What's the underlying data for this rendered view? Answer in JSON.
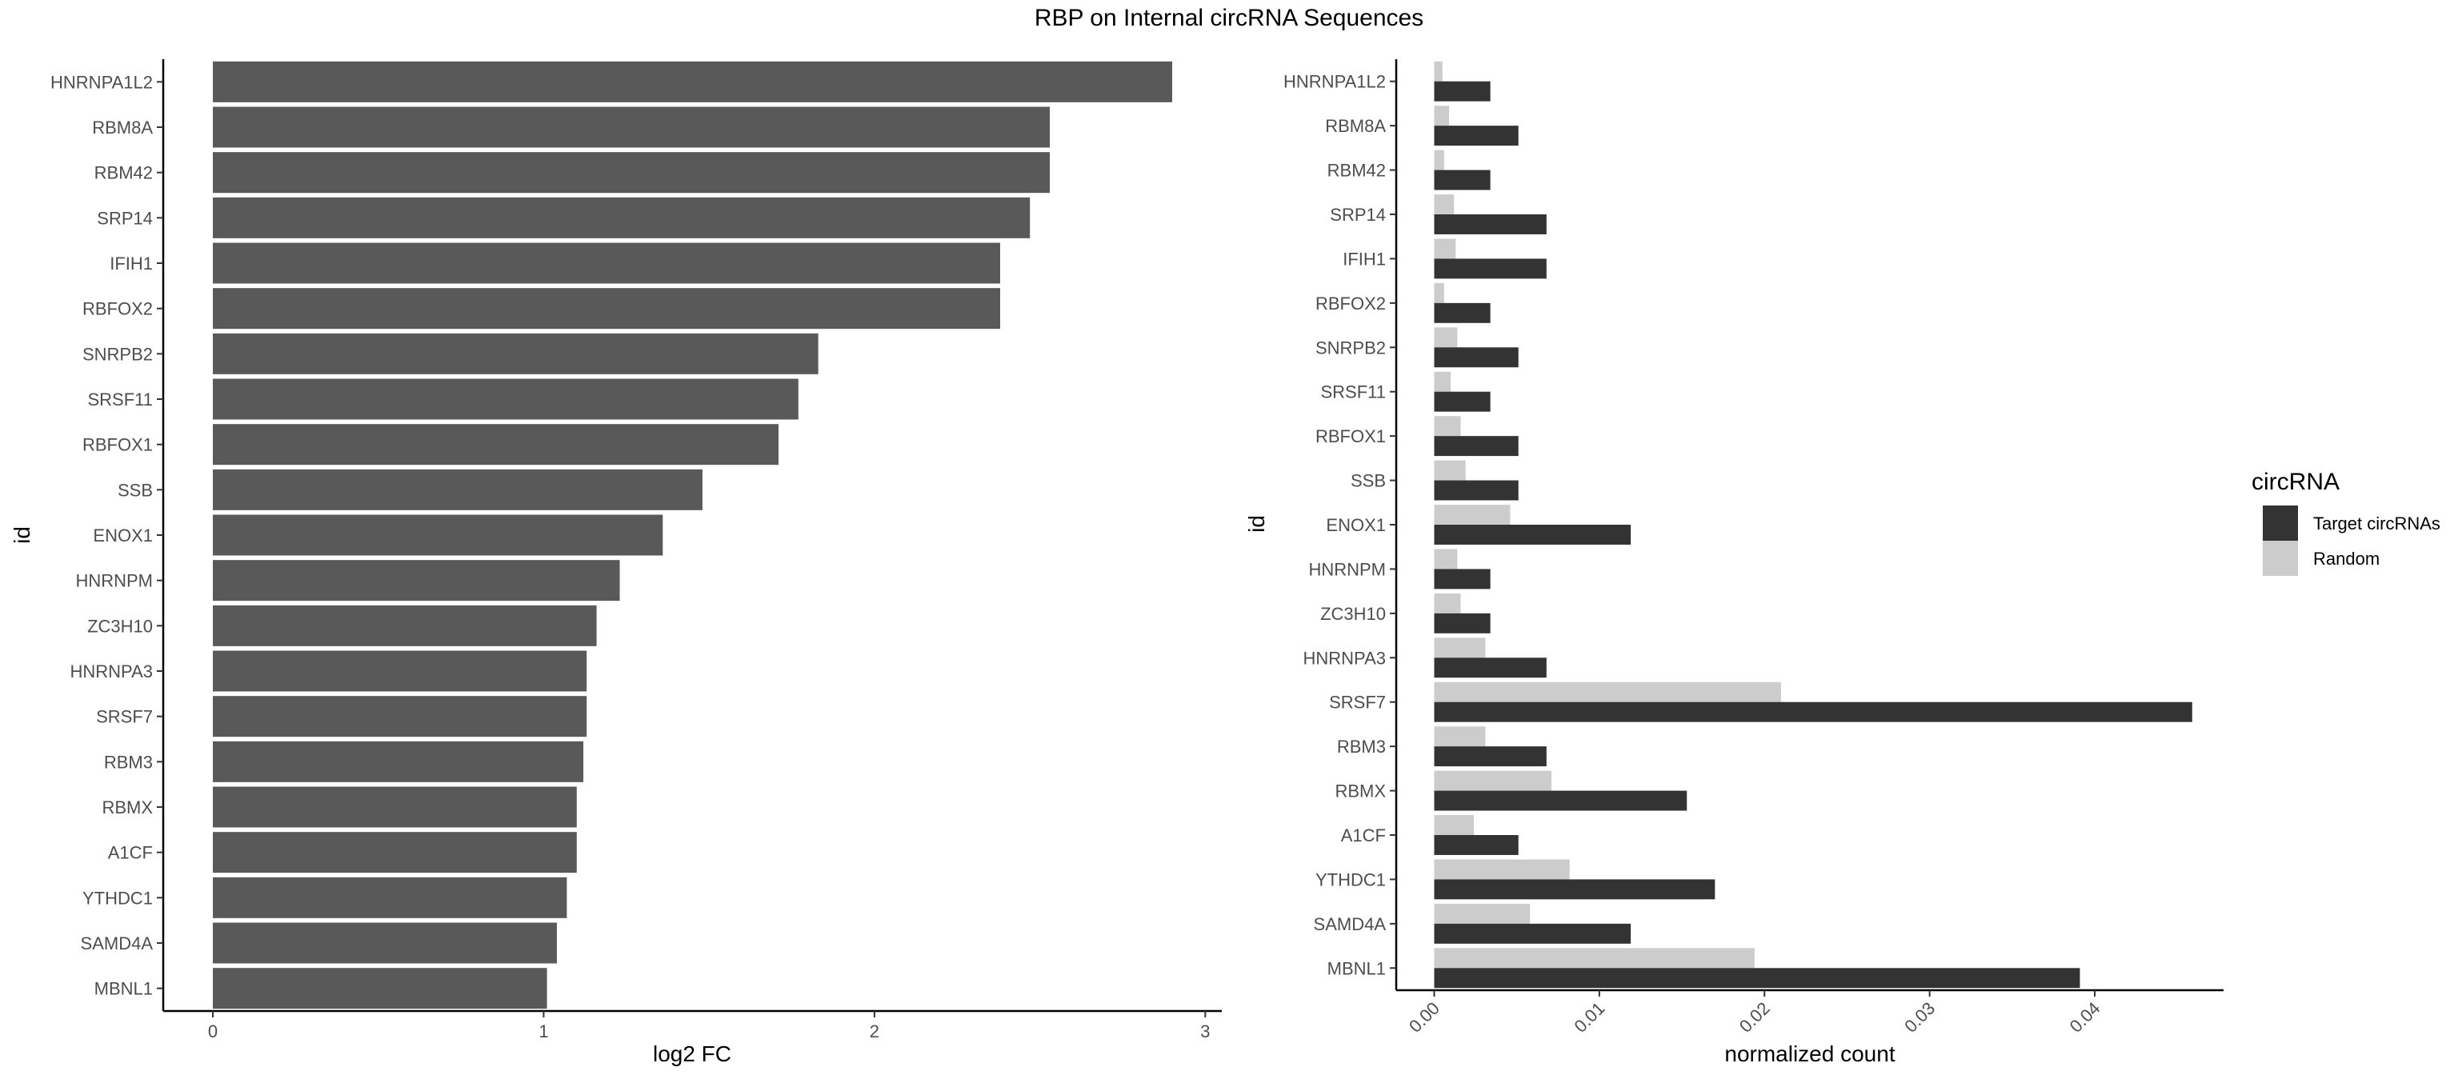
{
  "figure_title": "RBP on Internal circRNA Sequences",
  "chart_data": [
    {
      "type": "bar",
      "orientation": "horizontal",
      "title": "",
      "xlabel": "log2 FC",
      "ylabel": "id",
      "xlim": [
        -0.15,
        3.05
      ],
      "xticks": [
        0,
        1,
        2,
        3
      ],
      "categories": [
        "HNRNPA1L2",
        "RBM8A",
        "RBM42",
        "SRP14",
        "IFIH1",
        "RBFOX2",
        "SNRPB2",
        "SRSF11",
        "RBFOX1",
        "SSB",
        "ENOX1",
        "HNRNPM",
        "ZC3H10",
        "HNRNPA3",
        "SRSF7",
        "RBM3",
        "RBMX",
        "A1CF",
        "YTHDC1",
        "SAMD4A",
        "MBNL1"
      ],
      "values": [
        2.9,
        2.53,
        2.53,
        2.47,
        2.38,
        2.38,
        1.83,
        1.77,
        1.71,
        1.48,
        1.36,
        1.23,
        1.16,
        1.13,
        1.13,
        1.12,
        1.1,
        1.1,
        1.07,
        1.04,
        1.01
      ],
      "color": "#595959",
      "grid": false
    },
    {
      "type": "bar",
      "orientation": "horizontal",
      "title": "",
      "xlabel": "normalized count",
      "ylabel": "id",
      "xlim": [
        -0.0023,
        0.0478
      ],
      "xticks": [
        "0.00",
        "0.01",
        "0.02",
        "0.03",
        "0.04"
      ],
      "categories": [
        "HNRNPA1L2",
        "RBM8A",
        "RBM42",
        "SRP14",
        "IFIH1",
        "RBFOX2",
        "SNRPB2",
        "SRSF11",
        "RBFOX1",
        "SSB",
        "ENOX1",
        "HNRNPM",
        "ZC3H10",
        "HNRNPA3",
        "SRSF7",
        "RBM3",
        "RBMX",
        "A1CF",
        "YTHDC1",
        "SAMD4A",
        "MBNL1"
      ],
      "series": [
        {
          "name": "Target circRNAs",
          "color": "#333333",
          "values": [
            0.0034,
            0.0051,
            0.0034,
            0.0068,
            0.0068,
            0.0034,
            0.0051,
            0.0034,
            0.0051,
            0.0051,
            0.0119,
            0.0034,
            0.0034,
            0.0068,
            0.0459,
            0.0068,
            0.0153,
            0.0051,
            0.017,
            0.0119,
            0.0391
          ]
        },
        {
          "name": "Random",
          "color": "#cccccc",
          "values": [
            0.0005,
            0.0009,
            0.0006,
            0.0012,
            0.0013,
            0.0006,
            0.0014,
            0.001,
            0.0016,
            0.0019,
            0.0046,
            0.0014,
            0.0016,
            0.0031,
            0.021,
            0.0031,
            0.0071,
            0.0024,
            0.0082,
            0.0058,
            0.0194
          ]
        }
      ],
      "legend": {
        "title": "circRNA",
        "position": "right"
      },
      "grid": false
    }
  ]
}
